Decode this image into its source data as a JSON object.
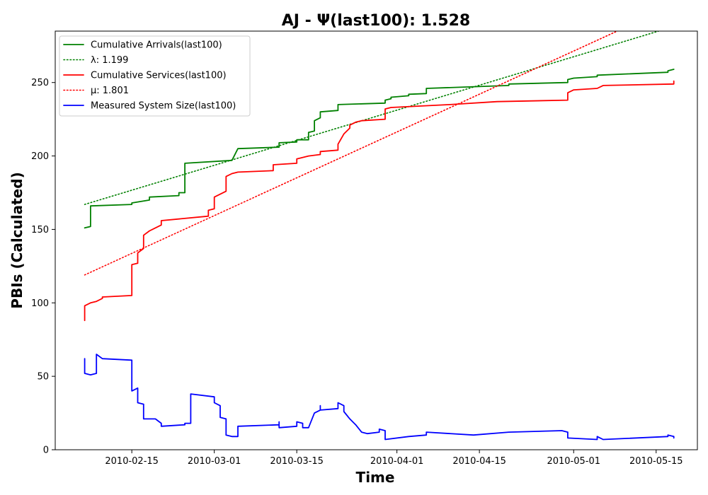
{
  "chart_data": {
    "type": "line",
    "title": "AJ -  Ψ(last100): 1.528",
    "xlabel": "Time",
    "ylabel": "PBIs (Calculated)",
    "xlim": [
      "2010-02-02",
      "2010-05-22"
    ],
    "ylim": [
      0,
      285
    ],
    "x_ticks": [
      "2010-02-15",
      "2010-03-01",
      "2010-03-15",
      "2010-04-01",
      "2010-04-15",
      "2010-05-01",
      "2010-05-15"
    ],
    "y_ticks": [
      0,
      50,
      100,
      150,
      200,
      250
    ],
    "grid": false,
    "legend_position": "top-left",
    "series": [
      {
        "name": "Cumulative Arrivals(last100)",
        "style": "solid",
        "color": "#008000",
        "points": [
          [
            "2010-02-07",
            151
          ],
          [
            "2010-02-08",
            152
          ],
          [
            "2010-02-08",
            165
          ],
          [
            "2010-02-08",
            166
          ],
          [
            "2010-02-15",
            167
          ],
          [
            "2010-02-15",
            168
          ],
          [
            "2010-02-18",
            170
          ],
          [
            "2010-02-18",
            172
          ],
          [
            "2010-02-23",
            173
          ],
          [
            "2010-02-23",
            175
          ],
          [
            "2010-02-24",
            175
          ],
          [
            "2010-02-24",
            195
          ],
          [
            "2010-03-04",
            197
          ],
          [
            "2010-03-05",
            205
          ],
          [
            "2010-03-12",
            206
          ],
          [
            "2010-03-12",
            209
          ],
          [
            "2010-03-15",
            209.5
          ],
          [
            "2010-03-15",
            211
          ],
          [
            "2010-03-17",
            211
          ],
          [
            "2010-03-17",
            216
          ],
          [
            "2010-03-18",
            217
          ],
          [
            "2010-03-18",
            224
          ],
          [
            "2010-03-19",
            226
          ],
          [
            "2010-03-19",
            230
          ],
          [
            "2010-03-22",
            231
          ],
          [
            "2010-03-22",
            235
          ],
          [
            "2010-03-30",
            236
          ],
          [
            "2010-03-30",
            238
          ],
          [
            "2010-03-31",
            239
          ],
          [
            "2010-03-31",
            240
          ],
          [
            "2010-04-03",
            241
          ],
          [
            "2010-04-03",
            242
          ],
          [
            "2010-04-06",
            242.5
          ],
          [
            "2010-04-06",
            246
          ],
          [
            "2010-04-20",
            248
          ],
          [
            "2010-04-20",
            249
          ],
          [
            "2010-04-30",
            250
          ],
          [
            "2010-04-30",
            252
          ],
          [
            "2010-05-01",
            253
          ],
          [
            "2010-05-05",
            254
          ],
          [
            "2010-05-05",
            255
          ],
          [
            "2010-05-17",
            257
          ],
          [
            "2010-05-17",
            258
          ],
          [
            "2010-05-18",
            259
          ]
        ]
      },
      {
        "name": "λ: 1.199",
        "style": "dotted",
        "color": "#008000",
        "points": [
          [
            "2010-02-07",
            167
          ],
          [
            "2010-05-22",
            293
          ]
        ]
      },
      {
        "name": "Cumulative Services(last100)",
        "style": "solid",
        "color": "#ff0000",
        "points": [
          [
            "2010-02-07",
            88
          ],
          [
            "2010-02-07",
            98
          ],
          [
            "2010-02-08",
            100
          ],
          [
            "2010-02-09",
            101
          ],
          [
            "2010-02-10",
            103
          ],
          [
            "2010-02-10",
            104
          ],
          [
            "2010-02-15",
            105
          ],
          [
            "2010-02-15",
            122
          ],
          [
            "2010-02-15",
            126
          ],
          [
            "2010-02-16",
            127
          ],
          [
            "2010-02-16",
            134
          ],
          [
            "2010-02-17",
            137
          ],
          [
            "2010-02-17",
            146
          ],
          [
            "2010-02-18",
            149
          ],
          [
            "2010-02-19",
            151
          ],
          [
            "2010-02-20",
            153
          ],
          [
            "2010-02-20",
            156
          ],
          [
            "2010-02-28",
            159
          ],
          [
            "2010-02-28",
            163
          ],
          [
            "2010-03-01",
            164
          ],
          [
            "2010-03-01",
            172
          ],
          [
            "2010-03-03",
            176
          ],
          [
            "2010-03-03",
            183
          ],
          [
            "2010-03-03",
            186
          ],
          [
            "2010-03-04",
            188
          ],
          [
            "2010-03-05",
            189
          ],
          [
            "2010-03-11",
            190
          ],
          [
            "2010-03-11",
            194
          ],
          [
            "2010-03-15",
            195
          ],
          [
            "2010-03-15",
            198
          ],
          [
            "2010-03-17",
            200
          ],
          [
            "2010-03-19",
            201
          ],
          [
            "2010-03-19",
            203
          ],
          [
            "2010-03-22",
            204
          ],
          [
            "2010-03-22",
            208
          ],
          [
            "2010-03-23",
            215
          ],
          [
            "2010-03-24",
            219
          ],
          [
            "2010-03-24",
            221
          ],
          [
            "2010-03-25",
            223
          ],
          [
            "2010-03-26",
            224
          ],
          [
            "2010-03-30",
            225
          ],
          [
            "2010-03-30",
            232
          ],
          [
            "2010-03-31",
            233
          ],
          [
            "2010-04-10",
            235
          ],
          [
            "2010-04-18",
            237
          ],
          [
            "2010-04-30",
            238
          ],
          [
            "2010-04-30",
            243
          ],
          [
            "2010-05-01",
            245
          ],
          [
            "2010-05-05",
            246
          ],
          [
            "2010-05-06",
            248
          ],
          [
            "2010-05-18",
            249
          ],
          [
            "2010-05-18",
            251
          ]
        ]
      },
      {
        "name": "μ: 1.801",
        "style": "dotted",
        "color": "#ff0000",
        "points": [
          [
            "2010-02-07",
            119
          ],
          [
            "2010-05-22",
            310
          ]
        ]
      },
      {
        "name": "Measured System Size(last100)",
        "style": "solid",
        "color": "#0000ff",
        "points": [
          [
            "2010-02-07",
            62
          ],
          [
            "2010-02-07",
            52
          ],
          [
            "2010-02-08",
            51
          ],
          [
            "2010-02-09",
            52
          ],
          [
            "2010-02-09",
            65
          ],
          [
            "2010-02-10",
            62
          ],
          [
            "2010-02-15",
            61
          ],
          [
            "2010-02-15",
            40
          ],
          [
            "2010-02-16",
            42
          ],
          [
            "2010-02-16",
            32
          ],
          [
            "2010-02-17",
            31
          ],
          [
            "2010-02-17",
            21
          ],
          [
            "2010-02-19",
            21
          ],
          [
            "2010-02-20",
            18
          ],
          [
            "2010-02-20",
            16
          ],
          [
            "2010-02-24",
            17
          ],
          [
            "2010-02-24",
            18
          ],
          [
            "2010-02-25",
            18
          ],
          [
            "2010-02-25",
            38
          ],
          [
            "2010-03-01",
            36
          ],
          [
            "2010-03-01",
            32
          ],
          [
            "2010-03-02",
            30
          ],
          [
            "2010-03-02",
            22
          ],
          [
            "2010-03-03",
            21
          ],
          [
            "2010-03-03",
            10
          ],
          [
            "2010-03-04",
            9
          ],
          [
            "2010-03-05",
            9
          ],
          [
            "2010-03-05",
            16
          ],
          [
            "2010-03-12",
            17
          ],
          [
            "2010-03-12",
            19
          ],
          [
            "2010-03-12",
            15
          ],
          [
            "2010-03-15",
            16
          ],
          [
            "2010-03-15",
            19
          ],
          [
            "2010-03-16",
            18
          ],
          [
            "2010-03-16",
            15
          ],
          [
            "2010-03-17",
            15
          ],
          [
            "2010-03-18",
            25
          ],
          [
            "2010-03-19",
            27
          ],
          [
            "2010-03-19",
            30
          ],
          [
            "2010-03-19",
            27
          ],
          [
            "2010-03-22",
            28
          ],
          [
            "2010-03-22",
            32
          ],
          [
            "2010-03-23",
            30
          ],
          [
            "2010-03-23",
            26
          ],
          [
            "2010-03-24",
            21
          ],
          [
            "2010-03-25",
            17
          ],
          [
            "2010-03-26",
            12
          ],
          [
            "2010-03-27",
            11
          ],
          [
            "2010-03-29",
            12
          ],
          [
            "2010-03-29",
            14
          ],
          [
            "2010-03-30",
            13
          ],
          [
            "2010-03-30",
            7
          ],
          [
            "2010-04-03",
            9
          ],
          [
            "2010-04-06",
            10
          ],
          [
            "2010-04-06",
            12
          ],
          [
            "2010-04-14",
            10
          ],
          [
            "2010-04-20",
            12
          ],
          [
            "2010-04-29",
            13
          ],
          [
            "2010-04-30",
            12
          ],
          [
            "2010-04-30",
            8
          ],
          [
            "2010-05-05",
            7
          ],
          [
            "2010-05-05",
            9
          ],
          [
            "2010-05-06",
            7
          ],
          [
            "2010-05-17",
            9
          ],
          [
            "2010-05-17",
            10
          ],
          [
            "2010-05-18",
            9
          ],
          [
            "2010-05-18",
            8
          ]
        ]
      }
    ],
    "legend": [
      {
        "label": "Cumulative Arrivals(last100)",
        "color": "#008000",
        "style": "solid"
      },
      {
        "label": "λ: 1.199",
        "color": "#008000",
        "style": "dotted"
      },
      {
        "label": "Cumulative Services(last100)",
        "color": "#ff0000",
        "style": "solid"
      },
      {
        "label": "μ: 1.801",
        "color": "#ff0000",
        "style": "dotted"
      },
      {
        "label": "Measured System Size(last100)",
        "color": "#0000ff",
        "style": "solid"
      }
    ]
  }
}
